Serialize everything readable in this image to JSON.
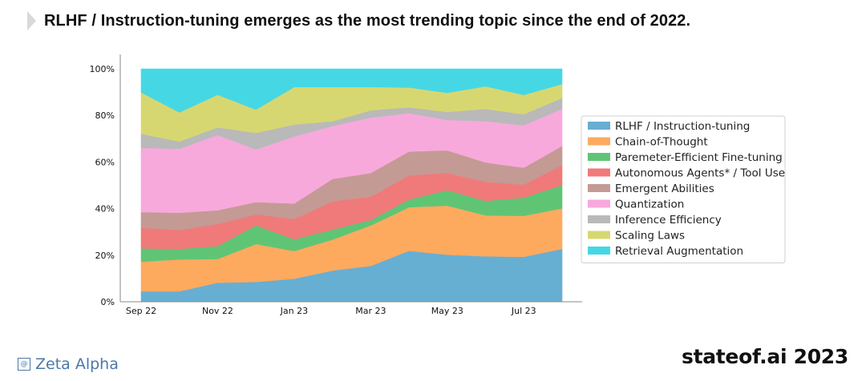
{
  "header": {
    "title": "RLHF / Instruction-tuning emerges as the most trending topic since the end of 2022."
  },
  "footer": {
    "source": "Zeta Alpha",
    "source_icon": "at-sign-icon",
    "brand": "stateof.ai 2023"
  },
  "chart_data": {
    "type": "area",
    "stacked": true,
    "x": [
      "2022-09",
      "2022-10",
      "2022-11",
      "2022-12",
      "2023-01",
      "2023-02",
      "2023-03",
      "2023-04",
      "2023-05",
      "2023-06",
      "2023-07",
      "2023-08"
    ],
    "xticks": [
      {
        "index": 0,
        "label": "Sep 22"
      },
      {
        "index": 2,
        "label": "Nov 22"
      },
      {
        "index": 4,
        "label": "Jan 23"
      },
      {
        "index": 6,
        "label": "Mar 23"
      },
      {
        "index": 8,
        "label": "May 23"
      },
      {
        "index": 10,
        "label": "Jul 23"
      }
    ],
    "yticks": [
      "0%",
      "20%",
      "40%",
      "60%",
      "80%",
      "100%"
    ],
    "ylim": [
      0,
      100
    ],
    "legend_position": "right",
    "series": [
      {
        "name": "RLHF / Instruction-tuning",
        "color": "#67aed3",
        "values": [
          4.5,
          4.5,
          8.2,
          8.5,
          9.9,
          13.4,
          15.4,
          21.9,
          20.2,
          19.5,
          19.3,
          22.7
        ]
      },
      {
        "name": "Chain-of-Thought",
        "color": "#fdaa5f",
        "values": [
          12.7,
          13.7,
          10.2,
          16.3,
          11.9,
          13.3,
          17.4,
          18.7,
          21.1,
          17.6,
          17.6,
          17.4
        ]
      },
      {
        "name": "Paremeter-Efficient Fine-tuning",
        "color": "#5fc575",
        "values": [
          5.7,
          4.5,
          5.5,
          8.0,
          5.0,
          4.3,
          2.3,
          3.3,
          6.6,
          6.2,
          7.8,
          10.0
        ]
      },
      {
        "name": "Autonomous Agents* / Tool Use",
        "color": "#f07a7a",
        "values": [
          8.9,
          8.1,
          9.5,
          4.7,
          8.7,
          12.1,
          10.0,
          10.4,
          7.4,
          8.2,
          5.6,
          8.6
        ]
      },
      {
        "name": "Emergent Abilities",
        "color": "#c49a95",
        "values": [
          6.7,
          7.4,
          5.9,
          5.3,
          6.7,
          9.6,
          10.2,
          10.2,
          9.7,
          8.3,
          7.3,
          8.2
        ]
      },
      {
        "name": "Quantization",
        "color": "#f7a9dc",
        "values": [
          27.6,
          27.5,
          32.3,
          22.6,
          28.8,
          22.8,
          23.8,
          16.5,
          13.1,
          17.7,
          18.2,
          16.0
        ]
      },
      {
        "name": "Inference Efficiency",
        "color": "#b9b9b9",
        "values": [
          6.0,
          3.1,
          3.3,
          7.1,
          5.1,
          2.0,
          3.1,
          2.5,
          3.4,
          5.3,
          4.7,
          4.6
        ]
      },
      {
        "name": "Scaling Laws",
        "color": "#d7d772",
        "values": [
          17.8,
          12.5,
          14.0,
          10.0,
          16.1,
          14.7,
          10.0,
          8.5,
          8.2,
          9.7,
          8.3,
          6.0
        ]
      },
      {
        "name": "Retrieval Augmentation",
        "color": "#46d7e5",
        "values": [
          10.1,
          18.7,
          11.1,
          17.5,
          7.8,
          7.8,
          7.8,
          8.0,
          10.3,
          7.5,
          11.2,
          6.5
        ]
      }
    ]
  }
}
